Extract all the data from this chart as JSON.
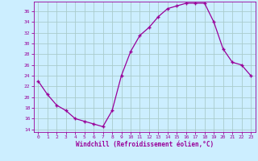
{
  "x": [
    0,
    1,
    2,
    3,
    4,
    5,
    6,
    7,
    8,
    9,
    10,
    11,
    12,
    13,
    14,
    15,
    16,
    17,
    18,
    19,
    20,
    21,
    22,
    23
  ],
  "y": [
    23,
    20.5,
    18.5,
    17.5,
    16,
    15.5,
    15,
    14.5,
    17.5,
    24,
    28.5,
    31.5,
    33,
    35,
    36.5,
    37,
    37.5,
    37.5,
    37.5,
    34,
    29,
    26.5,
    26,
    24
  ],
  "line_color": "#990099",
  "marker": "+",
  "background_color": "#cceeff",
  "grid_color": "#aacccc",
  "xlabel": "Windchill (Refroidissement éolien,°C)",
  "ylim": [
    13.5,
    37.8
  ],
  "xlim": [
    -0.5,
    23.5
  ],
  "tick_color": "#990099",
  "label_color": "#990099",
  "font_name": "monospace",
  "yticks": [
    14,
    16,
    18,
    20,
    22,
    24,
    26,
    28,
    30,
    32,
    34,
    36
  ]
}
